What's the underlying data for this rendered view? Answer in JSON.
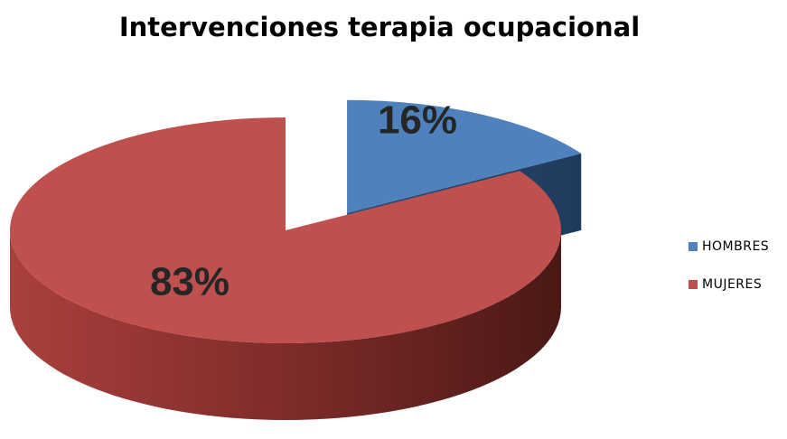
{
  "chart_data": {
    "type": "pie",
    "title": "Intervenciones terapia ocupacional",
    "categories": [
      "HOMBRES",
      "MUJERES"
    ],
    "values": [
      16,
      83
    ],
    "value_labels": [
      "16%",
      "83%"
    ],
    "colors": [
      "#4f81bd",
      "#c0504d"
    ],
    "legend": "right"
  }
}
